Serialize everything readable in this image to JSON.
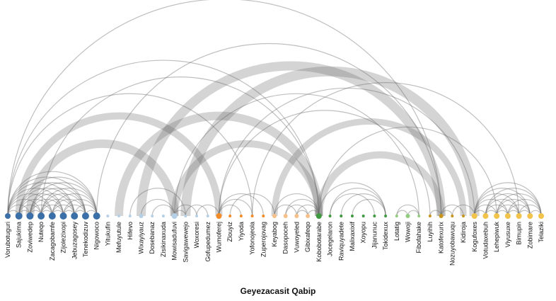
{
  "title": "Geyezacasit Qabip",
  "nodes": [
    {
      "name": "Vorubotuguri",
      "group": 0,
      "size": 4
    },
    {
      "name": "Sajukima",
      "group": 0,
      "size": 5
    },
    {
      "name": "Zoviwedep",
      "group": 0,
      "size": 5
    },
    {
      "name": "Nuteqo",
      "group": 0,
      "size": 5
    },
    {
      "name": "Zacagobamfe",
      "group": 0,
      "size": 5
    },
    {
      "name": "Zijolezixopi",
      "group": 0,
      "size": 5
    },
    {
      "name": "Jebuzagosey",
      "group": 0,
      "size": 5
    },
    {
      "name": "Tenekodizuv",
      "group": 0,
      "size": 5
    },
    {
      "name": "Nigowoco",
      "group": 0,
      "size": 5
    },
    {
      "name": "Yitukufin",
      "group": 1,
      "size": 2
    },
    {
      "name": "Mefuyutule",
      "group": 1,
      "size": 2
    },
    {
      "name": "Hifevo",
      "group": 1,
      "size": 2
    },
    {
      "name": "Wixayiyauz",
      "group": 1,
      "size": 3
    },
    {
      "name": "Dosebanaz",
      "group": 1,
      "size": 2
    },
    {
      "name": "Zisikinaxuda",
      "group": 1,
      "size": 2
    },
    {
      "name": "Mowisadufuvi",
      "group": 1,
      "size": 4
    },
    {
      "name": "Savigawewejo",
      "group": 1,
      "size": 2
    },
    {
      "name": "Woxoresi",
      "group": 1,
      "size": 2
    },
    {
      "name": "Gofupedumez",
      "group": 1,
      "size": 2
    },
    {
      "name": "Wumoferej",
      "group": 2,
      "size": 4
    },
    {
      "name": "Zlouyiz",
      "group": 2,
      "size": 2
    },
    {
      "name": "Yiyoda",
      "group": 2,
      "size": 2
    },
    {
      "name": "Yofonojeola",
      "group": 2,
      "size": 2
    },
    {
      "name": "Zuperojovag",
      "group": 2,
      "size": 2
    },
    {
      "name": "Keyabog",
      "group": 3,
      "size": 3
    },
    {
      "name": "Dasopoceh",
      "group": 3,
      "size": 3
    },
    {
      "name": "Vuwoyeled",
      "group": 3,
      "size": 3
    },
    {
      "name": "Gibixafeqo",
      "group": 3,
      "size": 3
    },
    {
      "name": "Kobobotarabe",
      "group": 4,
      "size": 4
    },
    {
      "name": "Jocegelaron",
      "group": 4,
      "size": 2
    },
    {
      "name": "Raviquyadete",
      "group": 4,
      "size": 2
    },
    {
      "name": "Malixaxixif",
      "group": 4,
      "size": 2
    },
    {
      "name": "Xoyopu",
      "group": 4,
      "size": 2
    },
    {
      "name": "Jijanunuc",
      "group": 4,
      "size": 2
    },
    {
      "name": "Tokidexux",
      "group": 4,
      "size": 2
    },
    {
      "name": "Lotatig",
      "group": 5,
      "size": 2
    },
    {
      "name": "Wowoji",
      "group": 5,
      "size": 3
    },
    {
      "name": "Fibofahake",
      "group": 5,
      "size": 2
    },
    {
      "name": "Luyihih",
      "group": 6,
      "size": 2
    },
    {
      "name": "Katofexurix",
      "group": 6,
      "size": 3
    },
    {
      "name": "Nozuyobawuqu",
      "group": 6,
      "size": 2
    },
    {
      "name": "Kidiroja",
      "group": 6,
      "size": 2
    },
    {
      "name": "Kogufoxes",
      "group": 7,
      "size": 4
    },
    {
      "name": "Votudaxebuh",
      "group": 7,
      "size": 4
    },
    {
      "name": "Lehepiwuk",
      "group": 7,
      "size": 4
    },
    {
      "name": "Viyusuxe",
      "group": 7,
      "size": 4
    },
    {
      "name": "Bimupin",
      "group": 7,
      "size": 4
    },
    {
      "name": "Zobimare",
      "group": 7,
      "size": 4
    },
    {
      "name": "Telaziki",
      "group": 7,
      "size": 4
    }
  ],
  "group_colors": [
    "#3b6fa8",
    "#b5cfe6",
    "#f28c28",
    "#f6c08a",
    "#3e9a3e",
    "#92cc7e",
    "#c8951c",
    "#f2c34a"
  ],
  "link_color": "#666666",
  "links": [
    {
      "source": 0,
      "target": 2,
      "value": 1
    },
    {
      "source": 0,
      "target": 3,
      "value": 1
    },
    {
      "source": 0,
      "target": 4,
      "value": 1
    },
    {
      "source": 0,
      "target": 5,
      "value": 1
    },
    {
      "source": 0,
      "target": 6,
      "value": 1
    },
    {
      "source": 0,
      "target": 7,
      "value": 1
    },
    {
      "source": 0,
      "target": 8,
      "value": 1
    },
    {
      "source": 1,
      "target": 3,
      "value": 1
    },
    {
      "source": 1,
      "target": 4,
      "value": 1
    },
    {
      "source": 1,
      "target": 5,
      "value": 1
    },
    {
      "source": 1,
      "target": 6,
      "value": 1
    },
    {
      "source": 1,
      "target": 7,
      "value": 1
    },
    {
      "source": 1,
      "target": 8,
      "value": 1
    },
    {
      "source": 2,
      "target": 4,
      "value": 1
    },
    {
      "source": 2,
      "target": 5,
      "value": 1
    },
    {
      "source": 2,
      "target": 6,
      "value": 1
    },
    {
      "source": 2,
      "target": 7,
      "value": 1
    },
    {
      "source": 2,
      "target": 8,
      "value": 1
    },
    {
      "source": 3,
      "target": 5,
      "value": 1
    },
    {
      "source": 3,
      "target": 6,
      "value": 1
    },
    {
      "source": 3,
      "target": 7,
      "value": 1
    },
    {
      "source": 3,
      "target": 8,
      "value": 1
    },
    {
      "source": 4,
      "target": 6,
      "value": 1
    },
    {
      "source": 4,
      "target": 7,
      "value": 1
    },
    {
      "source": 4,
      "target": 8,
      "value": 1
    },
    {
      "source": 5,
      "target": 7,
      "value": 1
    },
    {
      "source": 5,
      "target": 8,
      "value": 1
    },
    {
      "source": 6,
      "target": 8,
      "value": 1
    },
    {
      "source": 0,
      "target": 1,
      "value": 1
    },
    {
      "source": 1,
      "target": 2,
      "value": 1
    },
    {
      "source": 2,
      "target": 3,
      "value": 1
    },
    {
      "source": 3,
      "target": 4,
      "value": 1
    },
    {
      "source": 4,
      "target": 5,
      "value": 1
    },
    {
      "source": 5,
      "target": 6,
      "value": 1
    },
    {
      "source": 6,
      "target": 7,
      "value": 1
    },
    {
      "source": 7,
      "target": 8,
      "value": 1
    },
    {
      "source": 2,
      "target": 15,
      "value": 12
    },
    {
      "source": 1,
      "target": 19,
      "value": 10
    },
    {
      "source": 0,
      "target": 28,
      "value": 1
    },
    {
      "source": 0,
      "target": 39,
      "value": 1
    },
    {
      "source": 8,
      "target": 39,
      "value": 1
    },
    {
      "source": 0,
      "target": 22,
      "value": 1
    },
    {
      "source": 3,
      "target": 28,
      "value": 1
    },
    {
      "source": 10,
      "target": 28,
      "value": 12
    },
    {
      "source": 12,
      "target": 39,
      "value": 13
    },
    {
      "source": 15,
      "target": 28,
      "value": 10
    },
    {
      "source": 16,
      "target": 42,
      "value": 14
    },
    {
      "source": 15,
      "target": 37,
      "value": 1
    },
    {
      "source": 19,
      "target": 38,
      "value": 1
    },
    {
      "source": 19,
      "target": 42,
      "value": 1
    },
    {
      "source": 28,
      "target": 39,
      "value": 10
    },
    {
      "source": 28,
      "target": 44,
      "value": 1
    },
    {
      "source": 24,
      "target": 41,
      "value": 9
    },
    {
      "source": 22,
      "target": 46,
      "value": 1
    },
    {
      "source": 11,
      "target": 16,
      "value": 1
    },
    {
      "source": 12,
      "target": 15,
      "value": 1
    },
    {
      "source": 13,
      "target": 15,
      "value": 1
    },
    {
      "source": 15,
      "target": 17,
      "value": 1
    },
    {
      "source": 15,
      "target": 16,
      "value": 1
    },
    {
      "source": 16,
      "target": 18,
      "value": 1
    },
    {
      "source": 17,
      "target": 19,
      "value": 1
    },
    {
      "source": 19,
      "target": 21,
      "value": 1
    },
    {
      "source": 19,
      "target": 22,
      "value": 1
    },
    {
      "source": 19,
      "target": 23,
      "value": 1
    },
    {
      "source": 20,
      "target": 24,
      "value": 1
    },
    {
      "source": 24,
      "target": 28,
      "value": 1
    },
    {
      "source": 25,
      "target": 28,
      "value": 1
    },
    {
      "source": 26,
      "target": 28,
      "value": 1
    },
    {
      "source": 25,
      "target": 27,
      "value": 1
    },
    {
      "source": 26,
      "target": 27,
      "value": 1
    },
    {
      "source": 24,
      "target": 26,
      "value": 1
    },
    {
      "source": 27,
      "target": 28,
      "value": 1
    },
    {
      "source": 29,
      "target": 34,
      "value": 1
    },
    {
      "source": 30,
      "target": 34,
      "value": 1
    },
    {
      "source": 31,
      "target": 34,
      "value": 1
    },
    {
      "source": 28,
      "target": 34,
      "value": 1
    },
    {
      "source": 29,
      "target": 33,
      "value": 1
    },
    {
      "source": 36,
      "target": 37,
      "value": 1
    },
    {
      "source": 35,
      "target": 37,
      "value": 1
    },
    {
      "source": 35,
      "target": 36,
      "value": 1
    },
    {
      "source": 38,
      "target": 39,
      "value": 1
    },
    {
      "source": 39,
      "target": 40,
      "value": 1
    },
    {
      "source": 39,
      "target": 41,
      "value": 1
    },
    {
      "source": 40,
      "target": 42,
      "value": 1
    },
    {
      "source": 42,
      "target": 44,
      "value": 1
    },
    {
      "source": 42,
      "target": 45,
      "value": 1
    },
    {
      "source": 42,
      "target": 46,
      "value": 1
    },
    {
      "source": 42,
      "target": 47,
      "value": 1
    },
    {
      "source": 42,
      "target": 48,
      "value": 1
    },
    {
      "source": 43,
      "target": 45,
      "value": 1
    },
    {
      "source": 43,
      "target": 46,
      "value": 1
    },
    {
      "source": 43,
      "target": 47,
      "value": 1
    },
    {
      "source": 43,
      "target": 48,
      "value": 1
    },
    {
      "source": 44,
      "target": 46,
      "value": 1
    },
    {
      "source": 44,
      "target": 47,
      "value": 1
    },
    {
      "source": 44,
      "target": 48,
      "value": 1
    },
    {
      "source": 45,
      "target": 47,
      "value": 1
    },
    {
      "source": 45,
      "target": 48,
      "value": 1
    },
    {
      "source": 46,
      "target": 48,
      "value": 1
    },
    {
      "source": 42,
      "target": 43,
      "value": 1
    },
    {
      "source": 43,
      "target": 44,
      "value": 1
    },
    {
      "source": 44,
      "target": 45,
      "value": 1
    },
    {
      "source": 45,
      "target": 46,
      "value": 1
    },
    {
      "source": 46,
      "target": 47,
      "value": 1
    },
    {
      "source": 47,
      "target": 48,
      "value": 1
    }
  ]
}
